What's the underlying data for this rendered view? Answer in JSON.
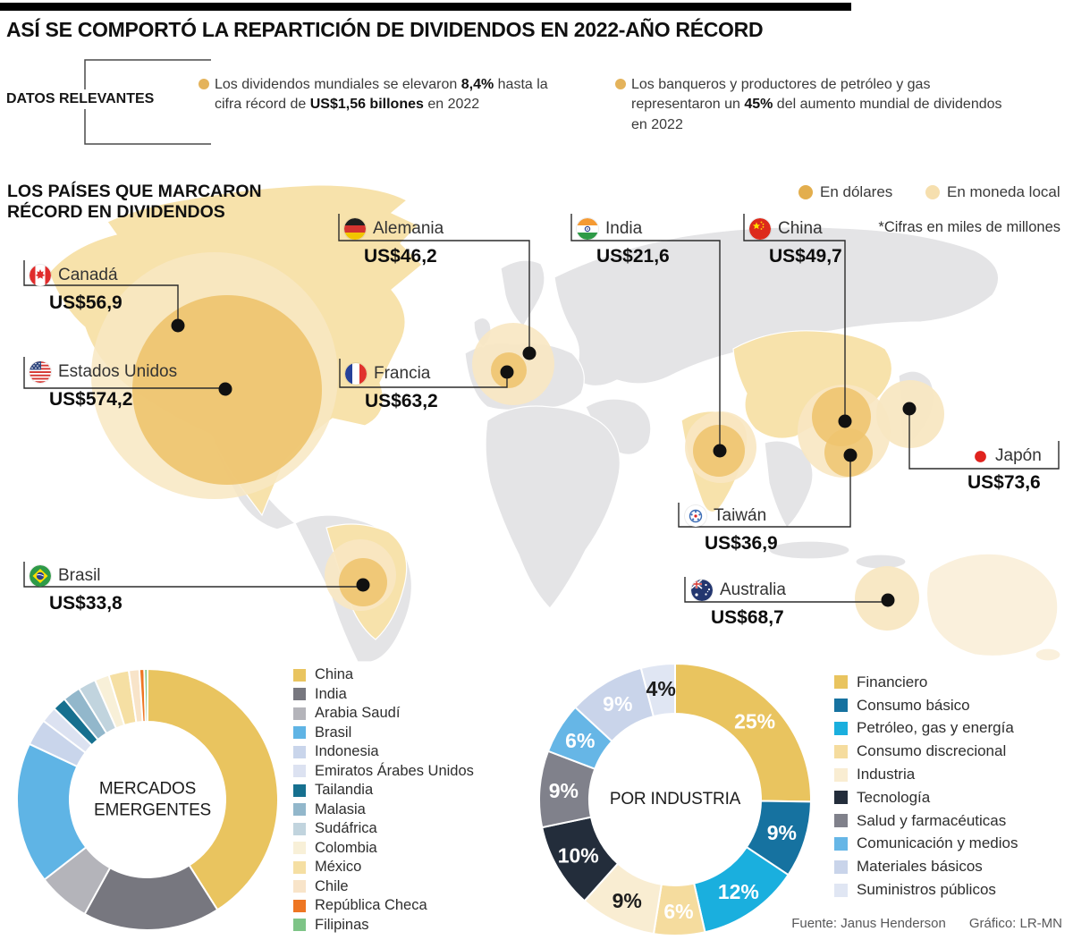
{
  "header": {
    "title": "ASÍ SE COMPORTÓ LA REPARTICIÓN DE DIVIDENDOS EN 2022-AÑO RÉCORD"
  },
  "facts": {
    "label": "DATOS RELEVANTES",
    "items": [
      {
        "segments": [
          {
            "t": "Los dividendos mundiales se elevaron "
          },
          {
            "t": "8,4%",
            "b": true
          },
          {
            "t": " hasta la cifra récord de "
          },
          {
            "t": "US$1,56 billones",
            "b": true
          },
          {
            "t": " en 2022"
          }
        ]
      },
      {
        "segments": [
          {
            "t": "Los banqueros y productores de petróleo y gas representaron un "
          },
          {
            "t": "45%",
            "b": true
          },
          {
            "t": " del aumento mundial de dividendos en 2022"
          }
        ]
      }
    ]
  },
  "map": {
    "heading_line1": "LOS PAÍSES QUE MARCARON",
    "heading_line2": "RÉCORD EN DIVIDENDOS",
    "legend": [
      {
        "label": "En dólares",
        "color": "#E3AE4D"
      },
      {
        "label": "En moneda local",
        "color": "#F6DFAE"
      }
    ],
    "note": "*Cifras en miles de millones",
    "countries": [
      {
        "id": "canada",
        "name": "Canadá",
        "value": "US$56,9"
      },
      {
        "id": "usa",
        "name": "Estados Unidos",
        "value": "US$574,2"
      },
      {
        "id": "germany",
        "name": "Alemania",
        "value": "US$46,2"
      },
      {
        "id": "france",
        "name": "Francia",
        "value": "US$63,2"
      },
      {
        "id": "india",
        "name": "India",
        "value": "US$21,6"
      },
      {
        "id": "china",
        "name": "China",
        "value": "US$49,7"
      },
      {
        "id": "japan",
        "name": "Japón",
        "value": "US$73,6"
      },
      {
        "id": "taiwan",
        "name": "Taiwán",
        "value": "US$36,9"
      },
      {
        "id": "australia",
        "name": "Australia",
        "value": "US$68,7"
      },
      {
        "id": "brazil",
        "name": "Brasil",
        "value": "US$33,8"
      }
    ]
  },
  "chart_data": [
    {
      "type": "pie",
      "variant": "donut",
      "title": "MERCADOS EMERGENTES",
      "labels": [
        "China",
        "India",
        "Arabia Saudí",
        "Brasil",
        "Indonesia",
        "Emiratos Árabes Unidos",
        "Tailandia",
        "Malasia",
        "Sudáfrica",
        "Colombia",
        "México",
        "Chile",
        "República Checa",
        "Filipinas"
      ],
      "values": [
        41,
        17,
        6.5,
        17.5,
        3.3,
        2,
        1.7,
        2.2,
        2.2,
        1.8,
        2.5,
        1.3,
        0.6,
        0.4
      ],
      "colors": [
        "#E9C45F",
        "#77777F",
        "#B4B4BA",
        "#5FB4E5",
        "#C9D5EB",
        "#DCE2F1",
        "#16708F",
        "#92B7CB",
        "#C1D4DE",
        "#F8F0D8",
        "#F5DFA3",
        "#F8E4C9",
        "#EE7623",
        "#7EC487"
      ],
      "legend_position": "right"
    },
    {
      "type": "pie",
      "variant": "donut",
      "title": "POR INDUSTRIA",
      "labels": [
        "Financiero",
        "Consumo básico",
        "Petróleo, gas y energía",
        "Consumo discrecional",
        "Industria",
        "Tecnología",
        "Salud y farmacéuticas",
        "Comunicación y medios",
        "Materiales básicos",
        "Suministros públicos"
      ],
      "values": [
        25,
        9,
        12,
        6,
        9,
        10,
        9,
        6,
        9,
        4
      ],
      "data_labels": [
        "25%",
        "9%",
        "12%",
        "6%",
        "9%",
        "10%",
        "9%",
        "6%",
        "9%",
        "4%"
      ],
      "label_dark": [
        false,
        false,
        false,
        false,
        true,
        false,
        false,
        false,
        false,
        true
      ],
      "colors": [
        "#E9C45F",
        "#1672A0",
        "#1AAFDE",
        "#F5DC9E",
        "#F9EDD2",
        "#232D3B",
        "#80818B",
        "#66B6E6",
        "#C9D4EA",
        "#E0E6F3"
      ],
      "legend_position": "right"
    }
  ],
  "footer": {
    "source": "Fuente: Janus Henderson",
    "credit": "Gráfico: LR-MN"
  }
}
